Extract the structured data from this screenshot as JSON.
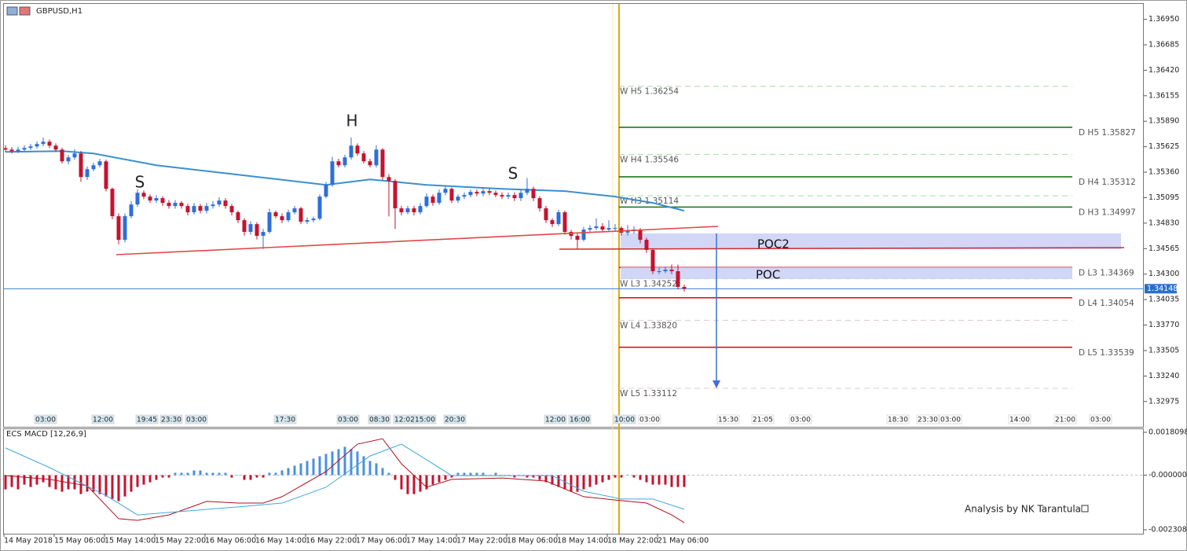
{
  "chart_data": [
    {
      "type": "candlestick",
      "title": "GBPUSD,H1",
      "ylim": [
        1.3272,
        1.3711
      ],
      "yticks": [
        {
          "value": 1.3695,
          "label": "1.36950"
        },
        {
          "value": 1.36685,
          "label": "1.36685"
        },
        {
          "value": 1.3642,
          "label": "1.36420"
        },
        {
          "value": 1.36155,
          "label": "1.36155"
        },
        {
          "value": 1.3589,
          "label": "1.35890"
        },
        {
          "value": 1.35625,
          "label": "1.35625"
        },
        {
          "value": 1.3536,
          "label": "1.35360"
        },
        {
          "value": 1.35095,
          "label": "1.35095"
        },
        {
          "value": 1.3483,
          "label": "1.34830"
        },
        {
          "value": 1.34565,
          "label": "1.34565"
        },
        {
          "value": 1.343,
          "label": "1.34300"
        },
        {
          "value": 1.34035,
          "label": "1.34035"
        },
        {
          "value": 1.3377,
          "label": "1.33770"
        },
        {
          "value": 1.33505,
          "label": "1.33505"
        },
        {
          "value": 1.3324,
          "label": "1.33240"
        },
        {
          "value": 1.32975,
          "label": "1.32975"
        }
      ],
      "bull_color": "#2e6fd8",
      "bear_color": "#c4132f",
      "candles": [
        [
          1.3561,
          1.3564,
          1.3557,
          1.35595
        ],
        [
          1.35595,
          1.3562,
          1.35555,
          1.35579
        ],
        [
          1.35579,
          1.35625,
          1.3556,
          1.35595
        ],
        [
          1.35595,
          1.3564,
          1.35575,
          1.35612
        ],
        [
          1.35612,
          1.35655,
          1.3559,
          1.35628
        ],
        [
          1.35628,
          1.3568,
          1.35605,
          1.35653
        ],
        [
          1.35653,
          1.3572,
          1.3563,
          1.35677
        ],
        [
          1.35677,
          1.357,
          1.3561,
          1.35636
        ],
        [
          1.35636,
          1.3566,
          1.3557,
          1.35595
        ],
        [
          1.35595,
          1.35615,
          1.3545,
          1.35473
        ],
        [
          1.35473,
          1.3554,
          1.3544,
          1.35514
        ],
        [
          1.35514,
          1.356,
          1.3549,
          1.35555
        ],
        [
          1.35555,
          1.3558,
          1.3526,
          1.3531
        ],
        [
          1.3531,
          1.3542,
          1.3528,
          1.35391
        ],
        [
          1.35391,
          1.3546,
          1.3537,
          1.35432
        ],
        [
          1.35432,
          1.355,
          1.3541,
          1.35473
        ],
        [
          1.35473,
          1.3549,
          1.3516,
          1.35187
        ],
        [
          1.35187,
          1.352,
          1.3487,
          1.34902
        ],
        [
          1.34902,
          1.3493,
          1.3461,
          1.34657
        ],
        [
          1.34657,
          1.3493,
          1.3463,
          1.34902
        ],
        [
          1.34902,
          1.3506,
          1.3488,
          1.35024
        ],
        [
          1.35024,
          1.3518,
          1.35,
          1.35146
        ],
        [
          1.35146,
          1.3517,
          1.3508,
          1.35106
        ],
        [
          1.35106,
          1.3513,
          1.3504,
          1.35065
        ],
        [
          1.35065,
          1.3512,
          1.3504,
          1.3509
        ],
        [
          1.3509,
          1.3511,
          1.3501,
          1.35041
        ],
        [
          1.35041,
          1.3507,
          1.3498,
          1.35008
        ],
        [
          1.35008,
          1.3507,
          1.3498,
          1.35041
        ],
        [
          1.35041,
          1.3506,
          1.3498,
          1.35008
        ],
        [
          1.35008,
          1.3503,
          1.3491,
          1.34943
        ],
        [
          1.34943,
          1.3504,
          1.3492,
          1.35008
        ],
        [
          1.35008,
          1.3503,
          1.3493,
          1.34959
        ],
        [
          1.34959,
          1.3504,
          1.3493,
          1.35008
        ],
        [
          1.35008,
          1.3506,
          1.3498,
          1.35024
        ],
        [
          1.35024,
          1.351,
          1.35,
          1.35065
        ],
        [
          1.35065,
          1.3509,
          1.3498,
          1.35008
        ],
        [
          1.35008,
          1.3503,
          1.3491,
          1.34943
        ],
        [
          1.34943,
          1.3496,
          1.3483,
          1.34861
        ],
        [
          1.34861,
          1.3488,
          1.347,
          1.34739
        ],
        [
          1.34739,
          1.3485,
          1.3471,
          1.3482
        ],
        [
          1.3482,
          1.3484,
          1.3466,
          1.34698
        ],
        [
          1.34698,
          1.3477,
          1.3456,
          1.34739
        ],
        [
          1.34739,
          1.3498,
          1.3472,
          1.34943
        ],
        [
          1.34943,
          1.3496,
          1.3488,
          1.34902
        ],
        [
          1.34902,
          1.3493,
          1.3483,
          1.34861
        ],
        [
          1.34861,
          1.3497,
          1.3484,
          1.34943
        ],
        [
          1.34943,
          1.3501,
          1.3492,
          1.34984
        ],
        [
          1.34984,
          1.35,
          1.3482,
          1.34845
        ],
        [
          1.34845,
          1.3489,
          1.3482,
          1.34861
        ],
        [
          1.34861,
          1.349,
          1.3484,
          1.34877
        ],
        [
          1.34877,
          1.3513,
          1.3486,
          1.35106
        ],
        [
          1.35106,
          1.3526,
          1.3509,
          1.35228
        ],
        [
          1.35228,
          1.3552,
          1.3521,
          1.35473
        ],
        [
          1.35473,
          1.355,
          1.3541,
          1.35432
        ],
        [
          1.35432,
          1.3554,
          1.3541,
          1.35514
        ],
        [
          1.35514,
          1.3572,
          1.3549,
          1.35636
        ],
        [
          1.35636,
          1.3566,
          1.3553,
          1.35555
        ],
        [
          1.35555,
          1.3558,
          1.3545,
          1.35473
        ],
        [
          1.35473,
          1.355,
          1.3541,
          1.35432
        ],
        [
          1.35432,
          1.3564,
          1.3541,
          1.35595
        ],
        [
          1.35595,
          1.3561,
          1.3528,
          1.3531
        ],
        [
          1.3531,
          1.3534,
          1.349,
          1.35269
        ],
        [
          1.35269,
          1.3529,
          1.3477,
          1.34984
        ],
        [
          1.34984,
          1.3501,
          1.3491,
          1.34943
        ],
        [
          1.34943,
          1.3501,
          1.3492,
          1.34984
        ],
        [
          1.34984,
          1.3501,
          1.3491,
          1.34943
        ],
        [
          1.34943,
          1.3504,
          1.3492,
          1.35008
        ],
        [
          1.35008,
          1.3514,
          1.3499,
          1.35106
        ],
        [
          1.35106,
          1.3513,
          1.3501,
          1.35041
        ],
        [
          1.35041,
          1.3518,
          1.3502,
          1.35146
        ],
        [
          1.35146,
          1.3522,
          1.3512,
          1.35187
        ],
        [
          1.35187,
          1.352,
          1.3504,
          1.35065
        ],
        [
          1.35065,
          1.3513,
          1.3504,
          1.35106
        ],
        [
          1.35106,
          1.3515,
          1.3508,
          1.35122
        ],
        [
          1.35122,
          1.3518,
          1.351,
          1.35155
        ],
        [
          1.35155,
          1.3518,
          1.3511,
          1.35138
        ],
        [
          1.35138,
          1.3519,
          1.3511,
          1.35163
        ],
        [
          1.35163,
          1.3519,
          1.3512,
          1.35146
        ],
        [
          1.35146,
          1.3517,
          1.351,
          1.35122
        ],
        [
          1.35122,
          1.3515,
          1.3508,
          1.35106
        ],
        [
          1.35106,
          1.3515,
          1.3508,
          1.35122
        ],
        [
          1.35122,
          1.3515,
          1.3506,
          1.3509
        ],
        [
          1.3509,
          1.3518,
          1.3506,
          1.35146
        ],
        [
          1.35146,
          1.353,
          1.3512,
          1.35187
        ],
        [
          1.35187,
          1.3521,
          1.3506,
          1.3509
        ],
        [
          1.3509,
          1.3511,
          1.3495,
          1.34984
        ],
        [
          1.34984,
          1.3501,
          1.3483,
          1.34861
        ],
        [
          1.34861,
          1.3488,
          1.3479,
          1.3482
        ],
        [
          1.3482,
          1.3497,
          1.348,
          1.34943
        ],
        [
          1.34943,
          1.3496,
          1.3471,
          1.34739
        ],
        [
          1.34739,
          1.3476,
          1.3466,
          1.34698
        ],
        [
          1.34698,
          1.3472,
          1.3456,
          1.34657
        ],
        [
          1.34657,
          1.3479,
          1.3464,
          1.34763
        ],
        [
          1.34763,
          1.3481,
          1.3474,
          1.34779
        ],
        [
          1.34779,
          1.3488,
          1.3476,
          1.34796
        ],
        [
          1.34796,
          1.3483,
          1.3474,
          1.34763
        ],
        [
          1.34763,
          1.3486,
          1.3474,
          1.34779
        ],
        [
          1.34779,
          1.3482,
          1.3474,
          1.34779
        ],
        [
          1.34779,
          1.348,
          1.347,
          1.3473
        ],
        [
          1.3473,
          1.3481,
          1.347,
          1.34747
        ],
        [
          1.34747,
          1.348,
          1.3472,
          1.34763
        ],
        [
          1.34763,
          1.3478,
          1.3462,
          1.34657
        ],
        [
          1.34657,
          1.3468,
          1.3452,
          1.34551
        ],
        [
          1.34551,
          1.3457,
          1.343,
          1.3433
        ],
        [
          1.3433,
          1.3437,
          1.343,
          1.3433
        ],
        [
          1.3433,
          1.3438,
          1.3431,
          1.34346
        ],
        [
          1.34346,
          1.344,
          1.343,
          1.3433
        ],
        [
          1.3433,
          1.344,
          1.3414,
          1.34167
        ],
        [
          1.34167,
          1.3419,
          1.3412,
          1.34148
        ]
      ],
      "moving_average": {
        "color": "#3a8fd0",
        "x": [
          0,
          9,
          14,
          24,
          37,
          51,
          58,
          67,
          79,
          89,
          97,
          103,
          108
        ],
        "values": [
          1.35571,
          1.35579,
          1.35555,
          1.35432,
          1.35334,
          1.35228,
          1.35285,
          1.35228,
          1.35187,
          1.35163,
          1.35106,
          1.35041,
          1.34959
        ]
      },
      "last_price": {
        "value": 1.34148,
        "label": "1.34148"
      },
      "levels": [
        {
          "label": "W  H5 1.36254",
          "value": 1.36254,
          "color": "#a5dba5",
          "style": "dashed",
          "side": "left"
        },
        {
          "label": "W  H4 1.35546",
          "value": 1.35546,
          "color": "#a5dba5",
          "style": "dashed",
          "side": "left"
        },
        {
          "label": "W  H3 1.35114",
          "value": 1.35114,
          "color": "#a5dba5",
          "style": "dashed",
          "side": "left"
        },
        {
          "label": "W  L3 1.34252",
          "value": 1.34252,
          "color": "#dccccc",
          "style": "dashed",
          "side": "left"
        },
        {
          "label": "W  L4 1.33820",
          "value": 1.3382,
          "color": "#dccccc",
          "style": "dashed",
          "side": "left"
        },
        {
          "label": "W  L5 1.33112",
          "value": 1.33112,
          "color": "#dccccc",
          "style": "dashed",
          "side": "left"
        },
        {
          "label": "D  H5 1.35827",
          "value": 1.35827,
          "color": "#1d7a1d",
          "style": "solid",
          "side": "right"
        },
        {
          "label": "D  H4 1.35312",
          "value": 1.35312,
          "color": "#1d7a1d",
          "style": "solid",
          "side": "right"
        },
        {
          "label": "D  H3 1.34997",
          "value": 1.34997,
          "color": "#1d7a1d",
          "style": "solid",
          "side": "right"
        },
        {
          "label": "D  L3 1.34369",
          "value": 1.34369,
          "color": "#d41f1f",
          "style": "solid",
          "side": "right"
        },
        {
          "label": "D  L4 1.34054",
          "value": 1.34054,
          "color": "#d41f1f",
          "style": "solid",
          "side": "right"
        },
        {
          "label": "D  L5 1.33539",
          "value": 1.33539,
          "color": "#d41f1f",
          "style": "solid",
          "side": "right"
        }
      ],
      "annotations": [
        "S",
        "H",
        "S",
        "POC2",
        "POC"
      ],
      "event_labels": [
        "03:00",
        "12:00",
        "19:45",
        "23:30",
        "03:00",
        "17:30",
        "03:00",
        "08:30",
        "12:02",
        "15:00",
        "20:30",
        "12:00",
        "16:00",
        "10:00",
        "03:00",
        "15:30",
        "21:05",
        "03:00",
        "18:30",
        "23:30",
        "03:00",
        "14:00",
        "21:00",
        "03:00"
      ]
    },
    {
      "type": "macd",
      "title": "ECS MACD [12,26,9]",
      "ylim": [
        -0.002474,
        0.001976
      ],
      "yticks": [
        0.0018098,
        {
          "value": 0,
          "label": "-0.0000000"
        },
        {
          "value": -0.002308,
          "label": "-0.0023080"
        }
      ],
      "positive_color": "#4a90e2",
      "negative_color": "#c4132f",
      "histogram": [
        -0.0006,
        -0.0005,
        -0.0006,
        -0.0004,
        -0.0005,
        -0.0004,
        -0.0003,
        -0.0005,
        -0.0006,
        -0.0007,
        -0.0006,
        -0.0006,
        -0.0008,
        -0.0007,
        -0.0007,
        -0.0008,
        -0.0009,
        -0.001,
        -0.0011,
        -0.0009,
        -0.0007,
        -0.0005,
        -0.0004,
        -0.0003,
        -0.0002,
        -0.0001,
        -0.0001,
        0.0001,
        0.0001,
        0.0001,
        0.0002,
        0.0002,
        0.0001,
        0.0001,
        0.0001,
        0.0001,
        -0.0001,
        0,
        -0.0002,
        -0.0002,
        -0.0001,
        -0.0001,
        0.0001,
        0.0001,
        0.0002,
        0.0003,
        0.0004,
        0.0005,
        0.0006,
        0.0007,
        0.0008,
        0.0009,
        0.001,
        0.0011,
        0.0012,
        0.0011,
        0.001,
        0.0008,
        0.0006,
        0.0005,
        0.0003,
        0.0001,
        -0.0002,
        -0.0006,
        -0.0008,
        -0.0008,
        -0.0007,
        -0.0006,
        -0.0004,
        -0.0003,
        -0.0002,
        -0.0001,
        0.0001,
        0.0001,
        0.0001,
        0.0001,
        0.0001,
        0,
        0.0001,
        0,
        0,
        -0.0001,
        0,
        -0.0001,
        -0.0001,
        -0.0002,
        -0.0003,
        -0.0004,
        -0.0005,
        -0.0006,
        -0.0007,
        -0.0007,
        -0.0006,
        -0.0005,
        -0.0004,
        -0.0003,
        -0.0002,
        -0.0001,
        -0.0001,
        0,
        -0.0001,
        -0.0002,
        -0.0003,
        -0.0004,
        -0.0004,
        -0.0004,
        -0.0005,
        -0.0005,
        -0.0005
      ],
      "macd": {
        "color": "#b0101c",
        "x": [
          0,
          7,
          13,
          18,
          21,
          26,
          32,
          37,
          41,
          44,
          51,
          56,
          60,
          63,
          67,
          71,
          79,
          86,
          92,
          97,
          102,
          106,
          108
        ],
        "values": [
          -2e-05,
          -0.00018,
          -0.00045,
          -0.00184,
          -0.00191,
          -0.00168,
          -0.00111,
          -0.00118,
          -0.00118,
          -0.00091,
          0.00015,
          0.00131,
          0.00154,
          0.00048,
          -0.00051,
          -0.00018,
          -0.00012,
          -0.00025,
          -0.00091,
          -0.00105,
          -0.00118,
          -0.00168,
          -0.00201
        ]
      },
      "signal": {
        "color": "#3fa7e0",
        "x": [
          0,
          7,
          16,
          21,
          29,
          37,
          44,
          51,
          58,
          63,
          67,
          71,
          87,
          92,
          98,
          103,
          108
        ],
        "values": [
          0.00115,
          0.00032,
          -0.00086,
          -0.00168,
          -0.00151,
          -0.00134,
          -0.00118,
          -0.00051,
          0.00081,
          0.00131,
          0.00065,
          -2e-05,
          -2e-05,
          -0.00068,
          -0.00101,
          -0.00101,
          -0.00144
        ]
      },
      "x_labels": [
        "14 May 2018",
        "15 May 06:00",
        "15 May 14:00",
        "15 May 22:00",
        "16 May 06:00",
        "16 May 14:00",
        "16 May 22:00",
        "17 May 06:00",
        "17 May 14:00",
        "17 May 22:00",
        "18 May 06:00",
        "18 May 14:00",
        "18 May 22:00",
        "21 May 06:00"
      ],
      "credit": "Analysis by NK Tarantula"
    }
  ]
}
